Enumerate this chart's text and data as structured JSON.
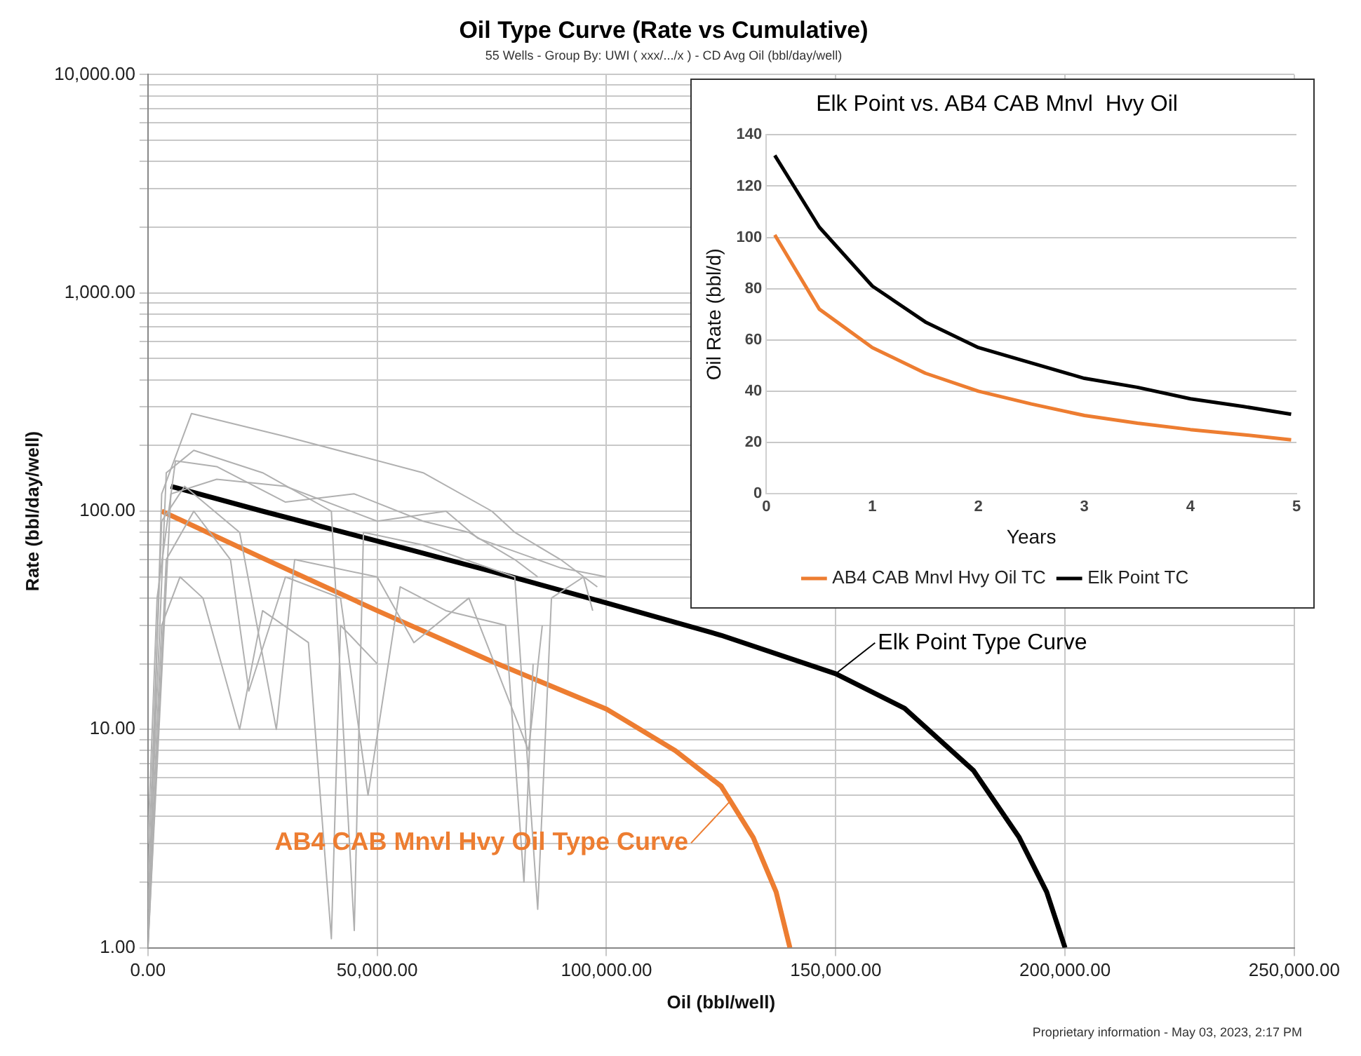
{
  "chart_data": [
    {
      "type": "line",
      "title": "Oil Type Curve (Rate vs Cumulative)",
      "subtitle": "55 Wells - Group By: UWI ( xxx/.../x ) - CD Avg Oil (bbl/day/well)",
      "xlabel": "Oil (bbl/well)",
      "ylabel": "Rate (bbl/day/well)",
      "log": "y",
      "grid": true,
      "legend": false,
      "xlim": [
        0,
        250000
      ],
      "xticks": [
        {
          "value": 0,
          "label": "0.00"
        },
        {
          "value": 50000,
          "label": "50,000.00"
        },
        {
          "value": 100000,
          "label": "100,000.00"
        },
        {
          "value": 150000,
          "label": "150,000.00"
        },
        {
          "value": 200000,
          "label": "200,000.00"
        },
        {
          "value": 250000,
          "label": "250,000.00"
        }
      ],
      "ylim": [
        1,
        10000
      ],
      "yticks": [
        {
          "value": 1,
          "label": "1.00"
        },
        {
          "value": 2,
          "label": null
        },
        {
          "value": 3,
          "label": null
        },
        {
          "value": 4,
          "label": null
        },
        {
          "value": 5,
          "label": null
        },
        {
          "value": 6,
          "label": null
        },
        {
          "value": 7,
          "label": null
        },
        {
          "value": 8,
          "label": null
        },
        {
          "value": 9,
          "label": null
        },
        {
          "value": 10,
          "label": "10.00"
        },
        {
          "value": 20,
          "label": null
        },
        {
          "value": 30,
          "label": null
        },
        {
          "value": 40,
          "label": null
        },
        {
          "value": 50,
          "label": null
        },
        {
          "value": 60,
          "label": null
        },
        {
          "value": 70,
          "label": null
        },
        {
          "value": 80,
          "label": null
        },
        {
          "value": 90,
          "label": null
        },
        {
          "value": 100,
          "label": "100.00"
        },
        {
          "value": 200,
          "label": null
        },
        {
          "value": 300,
          "label": null
        },
        {
          "value": 400,
          "label": null
        },
        {
          "value": 500,
          "label": null
        },
        {
          "value": 600,
          "label": null
        },
        {
          "value": 700,
          "label": null
        },
        {
          "value": 800,
          "label": null
        },
        {
          "value": 900,
          "label": null
        },
        {
          "value": 1000,
          "label": "1,000.00"
        },
        {
          "value": 2000,
          "label": null
        },
        {
          "value": 3000,
          "label": null
        },
        {
          "value": 4000,
          "label": null
        },
        {
          "value": 5000,
          "label": null
        },
        {
          "value": 6000,
          "label": null
        },
        {
          "value": 7000,
          "label": null
        },
        {
          "value": 8000,
          "label": null
        },
        {
          "value": 9000,
          "label": null
        },
        {
          "value": 10000,
          "label": "10,000.00"
        }
      ],
      "series": [
        {
          "color": "#b0b0b0",
          "x": [
            0,
            3000,
            9500,
            30000,
            60000,
            75000,
            80000,
            90000,
            98000
          ],
          "values": [
            1,
            120,
            280,
            220,
            150,
            100,
            80,
            60,
            45
          ]
        },
        {
          "color": "#b0b0b0",
          "x": [
            0,
            4000,
            10000,
            25000,
            40000,
            45000,
            47000,
            60000,
            80000,
            85000,
            88000,
            95000,
            97000
          ],
          "values": [
            1.5,
            150,
            190,
            150,
            100,
            1.2,
            80,
            70,
            50,
            1.5,
            40,
            50,
            35
          ]
        },
        {
          "color": "#b0b0b0",
          "x": [
            0,
            3000,
            8000,
            20000,
            28000,
            32000,
            50000,
            58000,
            70000,
            83000,
            86000
          ],
          "values": [
            2,
            90,
            130,
            80,
            10,
            60,
            50,
            25,
            40,
            8,
            30
          ]
        },
        {
          "color": "#b0b0b0",
          "x": [
            0,
            4000,
            10000,
            18000,
            22000,
            30000,
            42000,
            48000,
            55000,
            65000,
            78000,
            82000,
            84000
          ],
          "values": [
            1,
            60,
            100,
            60,
            15,
            50,
            40,
            5,
            45,
            35,
            30,
            2,
            20
          ]
        },
        {
          "color": "#b0b0b0",
          "x": [
            0,
            2000,
            6000,
            15000,
            30000,
            45000,
            60000,
            70000,
            80000,
            85000
          ],
          "values": [
            3,
            40,
            170,
            160,
            110,
            120,
            90,
            80,
            60,
            50
          ]
        },
        {
          "color": "#b0b0b0",
          "x": [
            0,
            3000,
            7000,
            12000,
            16000,
            20000,
            25000,
            35000,
            40000,
            42000,
            50000
          ],
          "values": [
            1.2,
            30,
            50,
            40,
            20,
            10,
            35,
            25,
            1.1,
            30,
            20
          ]
        },
        {
          "color": "#b0b0b0",
          "x": [
            0,
            5000,
            15000,
            30000,
            50000,
            65000,
            72000,
            90000,
            100000
          ],
          "values": [
            1,
            120,
            140,
            130,
            90,
            100,
            75,
            55,
            50
          ]
        },
        {
          "color": "#ed7d31",
          "x": [
            3000,
            25000,
            50000,
            75000,
            100000,
            115000,
            125000,
            132000,
            137000,
            140000
          ],
          "values": [
            100,
            61,
            35,
            20.5,
            12.4,
            8,
            5.5,
            3.2,
            1.8,
            1
          ]
        },
        {
          "color": "#000000",
          "x": [
            5000,
            25000,
            50000,
            75000,
            100000,
            125000,
            150000,
            165000,
            180000,
            190000,
            196000,
            200000
          ],
          "values": [
            130,
            100,
            73,
            53,
            38,
            27,
            18,
            12.5,
            6.5,
            3.2,
            1.8,
            1
          ]
        }
      ],
      "annotations": [
        {
          "text": "Elk Point Type Curve",
          "x": 150000,
          "y": 18
        },
        {
          "text": "AB4 CAB Mnvl Hvy Oil Type Curve",
          "x": 127000,
          "y": 4.7
        },
        "Proprietary information - May 03, 2023, 2:17 PM"
      ]
    },
    {
      "type": "line",
      "title": "Elk Point vs. AB4 CAB Mnvl  Hvy Oil",
      "xlabel": "Years",
      "ylabel": "Oil Rate (bbl/d)",
      "grid": "y",
      "legend": "bottom",
      "xlim": [
        0,
        5
      ],
      "xticks": [
        0,
        1,
        2,
        3,
        4,
        5
      ],
      "ylim": [
        0,
        140
      ],
      "yticks": [
        0,
        20,
        40,
        60,
        80,
        100,
        120,
        140
      ],
      "x": [
        0.08,
        0.5,
        1,
        1.5,
        2,
        2.5,
        3,
        3.5,
        4,
        4.5,
        4.95
      ],
      "series": [
        {
          "name": "AB4 CAB Mnvl Hvy Oil TC",
          "color": "#ed7d31",
          "values": [
            101,
            72,
            57,
            47,
            40,
            35,
            30.5,
            27.5,
            25,
            23,
            21
          ]
        },
        {
          "name": "Elk Point TC",
          "color": "#000000",
          "values": [
            132,
            104,
            81,
            67,
            57,
            51,
            45,
            41.5,
            37,
            34,
            31
          ]
        }
      ]
    }
  ]
}
